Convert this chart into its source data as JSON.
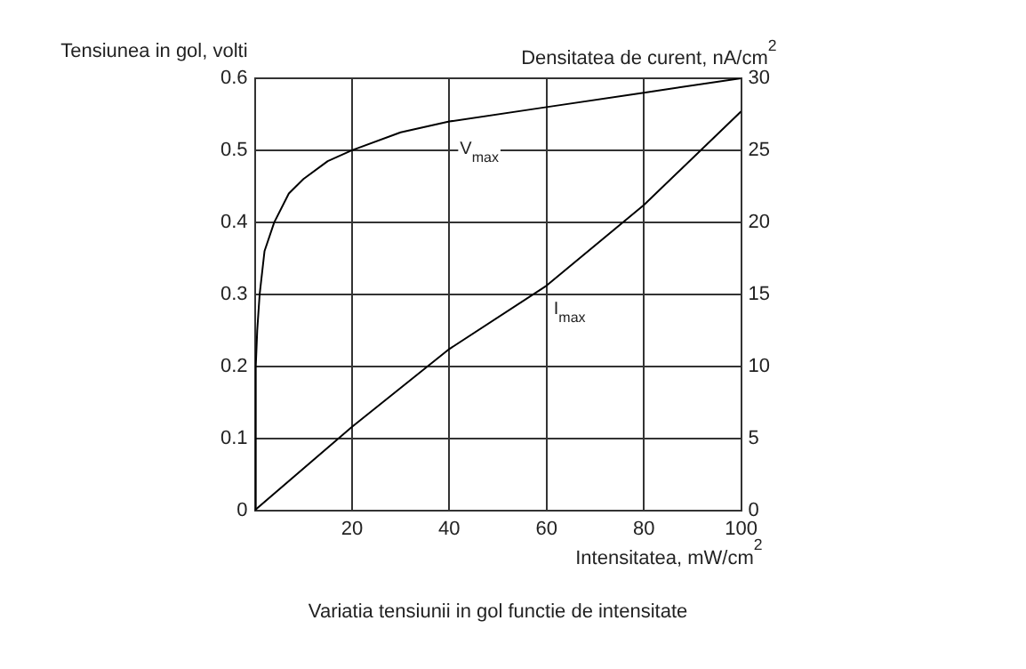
{
  "chart_data": {
    "type": "line",
    "title": "Variatia tensiunii in gol functie de intensitate",
    "xlabel": "Intensitatea, mW/cm$^{2}$",
    "ylabel": "Tensiunea in gol, volti",
    "y2label": "Densitatea de curent, nA/cm$^{2}$",
    "series": [
      {
        "name": "V$_{max}$",
        "color": "#000000",
        "x": [
          0,
          0.2,
          0.5,
          1,
          2,
          4,
          7,
          10,
          15,
          20,
          30,
          40,
          60,
          80,
          100
        ],
        "values": [
          0,
          0.2,
          0.25,
          0.3,
          0.36,
          0.4,
          0.44,
          0.46,
          0.485,
          0.5,
          0.525,
          0.54,
          0.56,
          0.58,
          0.6
        ]
      },
      {
        "name": "I$_{max}$",
        "color": "#000000",
        "axis": "y2",
        "x": [
          0,
          20,
          40,
          60,
          80,
          100
        ],
        "values": [
          0,
          5.8,
          11.2,
          15.6,
          21.2,
          27.7
        ]
      }
    ],
    "xlim": [
      0,
      100
    ],
    "xticks": [
      {
        "value": 0,
        "label": null
      },
      20,
      40,
      60,
      80,
      100
    ],
    "ylim": [
      0,
      0.6
    ],
    "yticks": [
      0,
      0.1,
      0.2,
      0.3,
      0.4,
      0.5,
      0.6
    ],
    "y2lim": [
      0,
      30
    ],
    "y2ticks": [
      0,
      5,
      10,
      15,
      20,
      25,
      30
    ],
    "grid": true,
    "legend": false,
    "marker": "none",
    "line_style": "solid"
  }
}
